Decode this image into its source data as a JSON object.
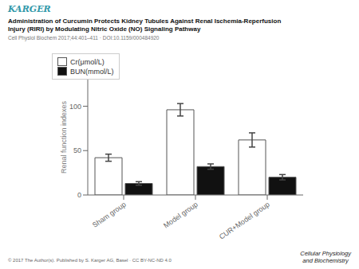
{
  "chart_data": {
    "type": "bar",
    "title": "Administration of Curcumin Protects Kidney Tubules Against Renal Ischemia-Reperfusion\nInjury (RIRI) by Modulating Nitric Oxide (NO) Signaling Pathway",
    "subtitle": "Cell Physiol Biochem 2017;44:401–411 · DOI:10.1159/000484920",
    "annotations": [
      "KARGER",
      "© 2017 The Author(s). Published by S. Karger AG, Basel · CC BY-NC-ND 4.0",
      "Cellular Physiology\nand Biochemistry"
    ],
    "y_label": "Renal function indexes",
    "categories": [
      "Sham group",
      "Model group",
      "CUR+Model group"
    ],
    "series": [
      {
        "name": "Cr(μmol/L)",
        "color": "#ffffff",
        "values": [
          42,
          96,
          62
        ],
        "errors": [
          4,
          7,
          8
        ]
      },
      {
        "name": "BUN(mmol/L)",
        "color": "#111111",
        "values": [
          13,
          32,
          20
        ],
        "errors": [
          2,
          3,
          3
        ]
      }
    ],
    "ylim": [
      0,
      130
    ],
    "yticks": [
      0,
      50,
      100
    ],
    "grid": false,
    "legend": "upper right"
  }
}
